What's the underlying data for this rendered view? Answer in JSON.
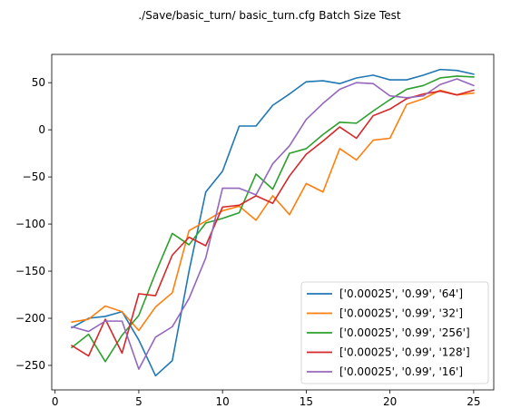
{
  "chart_data": {
    "type": "line",
    "title": "./Save/basic_turn/ basic_turn.cfg Batch Size Test",
    "xlabel": "",
    "ylabel": "",
    "xlim": [
      -0.2,
      26.2
    ],
    "ylim": [
      -276,
      80
    ],
    "xticks": [
      0,
      5,
      10,
      15,
      20,
      25
    ],
    "yticks": [
      -250,
      -200,
      -150,
      -100,
      -50,
      0,
      50
    ],
    "grid": false,
    "legend_position": "lower-right",
    "x": [
      1,
      2,
      3,
      4,
      5,
      6,
      7,
      8,
      9,
      10,
      11,
      12,
      13,
      14,
      15,
      16,
      17,
      18,
      19,
      20,
      21,
      22,
      23,
      24,
      25
    ],
    "series": [
      {
        "name": "['0.00025', '0.99', '64']",
        "color": "#1f77b4",
        "values": [
          -210,
          -200,
          -198,
          -193,
          -223,
          -261,
          -245,
          -150,
          -66,
          -44,
          4,
          4,
          26,
          38,
          51,
          52,
          49,
          55,
          58,
          53,
          53,
          58,
          64,
          63,
          59
        ]
      },
      {
        "name": "['0.00025', '0.99', '32']",
        "color": "#ff7f0e",
        "values": [
          -204,
          -201,
          -187,
          -193,
          -213,
          -188,
          -173,
          -107,
          -97,
          -86,
          -81,
          -96,
          -70,
          -90,
          -57,
          -66,
          -20,
          -32,
          -11,
          -9,
          27,
          33,
          42,
          37,
          39
        ]
      },
      {
        "name": "['0.00025', '0.99', '256']",
        "color": "#2ca02c",
        "values": [
          -231,
          -217,
          -246,
          -218,
          -197,
          -152,
          -110,
          -122,
          -99,
          -94,
          -88,
          -47,
          -63,
          -25,
          -20,
          -5,
          8,
          7,
          20,
          32,
          43,
          47,
          55,
          57,
          56
        ]
      },
      {
        "name": "['0.00025', '0.99', '128']",
        "color": "#d62728",
        "values": [
          -229,
          -240,
          -201,
          -237,
          -174,
          -176,
          -133,
          -114,
          -123,
          -82,
          -80,
          -70,
          -78,
          -49,
          -26,
          -12,
          3,
          -9,
          15,
          22,
          33,
          38,
          41,
          37,
          42
        ]
      },
      {
        "name": "['0.00025', '0.99', '16']",
        "color": "#9467bd",
        "values": [
          -209,
          -214,
          -203,
          -203,
          -254,
          -220,
          -209,
          -179,
          -136,
          -62,
          -62,
          -69,
          -36,
          -17,
          11,
          28,
          43,
          50,
          49,
          36,
          34,
          36,
          48,
          54,
          47
        ]
      }
    ]
  }
}
